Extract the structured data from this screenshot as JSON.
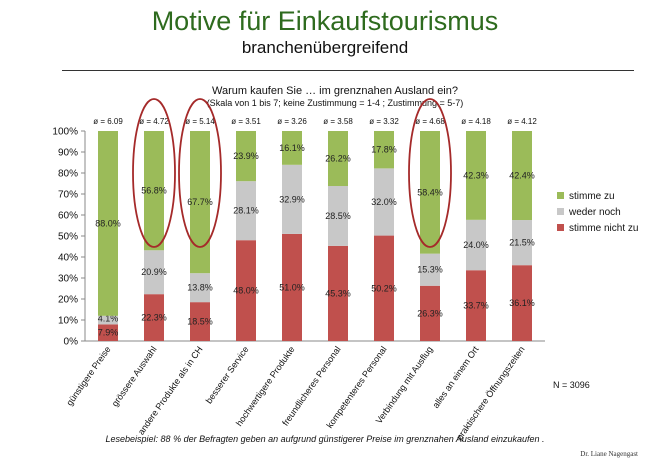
{
  "header": {
    "title": "Motive für Einkaufstourismus",
    "subtitle": "branchenübergreifend"
  },
  "chart_data": {
    "type": "bar",
    "stacked": true,
    "title": "Warum kaufen Sie … im grenznahen Ausland ein?",
    "subtitle": "(Skala von 1 bis 7; keine Zustimmung = 1-4 ; Zustimmung = 5-7)",
    "categories": [
      "günstigere Preise",
      "grössere Auswahl",
      "andere Produkte als in CH",
      "besserer Service",
      "hochwertigere Produkte",
      "freundlicheres Personal",
      "kompetenteres Personal",
      "Verbindung mit Ausflug",
      "alles an einem Ort",
      "praktischere Öffnungszeiten"
    ],
    "averages": [
      "ø = 6.09",
      "ø = 4.72",
      "ø = 5.14",
      "ø = 3.51",
      "ø = 3.26",
      "ø = 3.58",
      "ø = 3.32",
      "ø = 4.68",
      "ø = 4.18",
      "ø = 4.12"
    ],
    "series": [
      {
        "name": "stimme nicht zu",
        "color": "#c0504d",
        "values": [
          7.9,
          22.3,
          18.5,
          48.0,
          51.0,
          45.3,
          50.2,
          26.3,
          33.7,
          36.1
        ],
        "labels": [
          "7.9%",
          "22.3%",
          "18.5%",
          "48.0%",
          "51.0%",
          "45.3%",
          "50.2%",
          "26.3%",
          "33.7%",
          "36.1%"
        ]
      },
      {
        "name": "weder noch",
        "color": "#c8c8c8",
        "values": [
          4.1,
          20.9,
          13.8,
          28.1,
          32.9,
          28.5,
          32.0,
          15.3,
          24.0,
          21.5
        ],
        "labels": [
          "4.1%",
          "20.9%",
          "13.8%",
          "28.1%",
          "32.9%",
          "28.5%",
          "32.0%",
          "15.3%",
          "24.0%",
          "21.5%"
        ]
      },
      {
        "name": "stimme zu",
        "color": "#9bbb59",
        "values": [
          88.0,
          56.8,
          67.7,
          23.9,
          16.1,
          26.2,
          17.8,
          58.4,
          42.3,
          42.4
        ],
        "labels": [
          "88.0%",
          "56.8%",
          "67.7%",
          "23.9%",
          "16.1%",
          "26.2%",
          "17.8%",
          "58.4%",
          "42.3%",
          "42.4%"
        ]
      }
    ],
    "yticks": [
      "0%",
      "10%",
      "20%",
      "30%",
      "40%",
      "50%",
      "60%",
      "70%",
      "80%",
      "90%",
      "100%"
    ],
    "ylim": [
      0,
      100
    ],
    "legend_position": "right",
    "highlighted_categories": [
      1,
      2,
      7
    ],
    "highlight_color": "#a52a2a"
  },
  "sample_size": "N = 3096",
  "footnote": "Lesebeispiel: 88 % der Befragten geben an aufgrund günstigerer Preise im grenznahen Ausland einzukaufen .",
  "author": "Dr. Liane Nagengast"
}
